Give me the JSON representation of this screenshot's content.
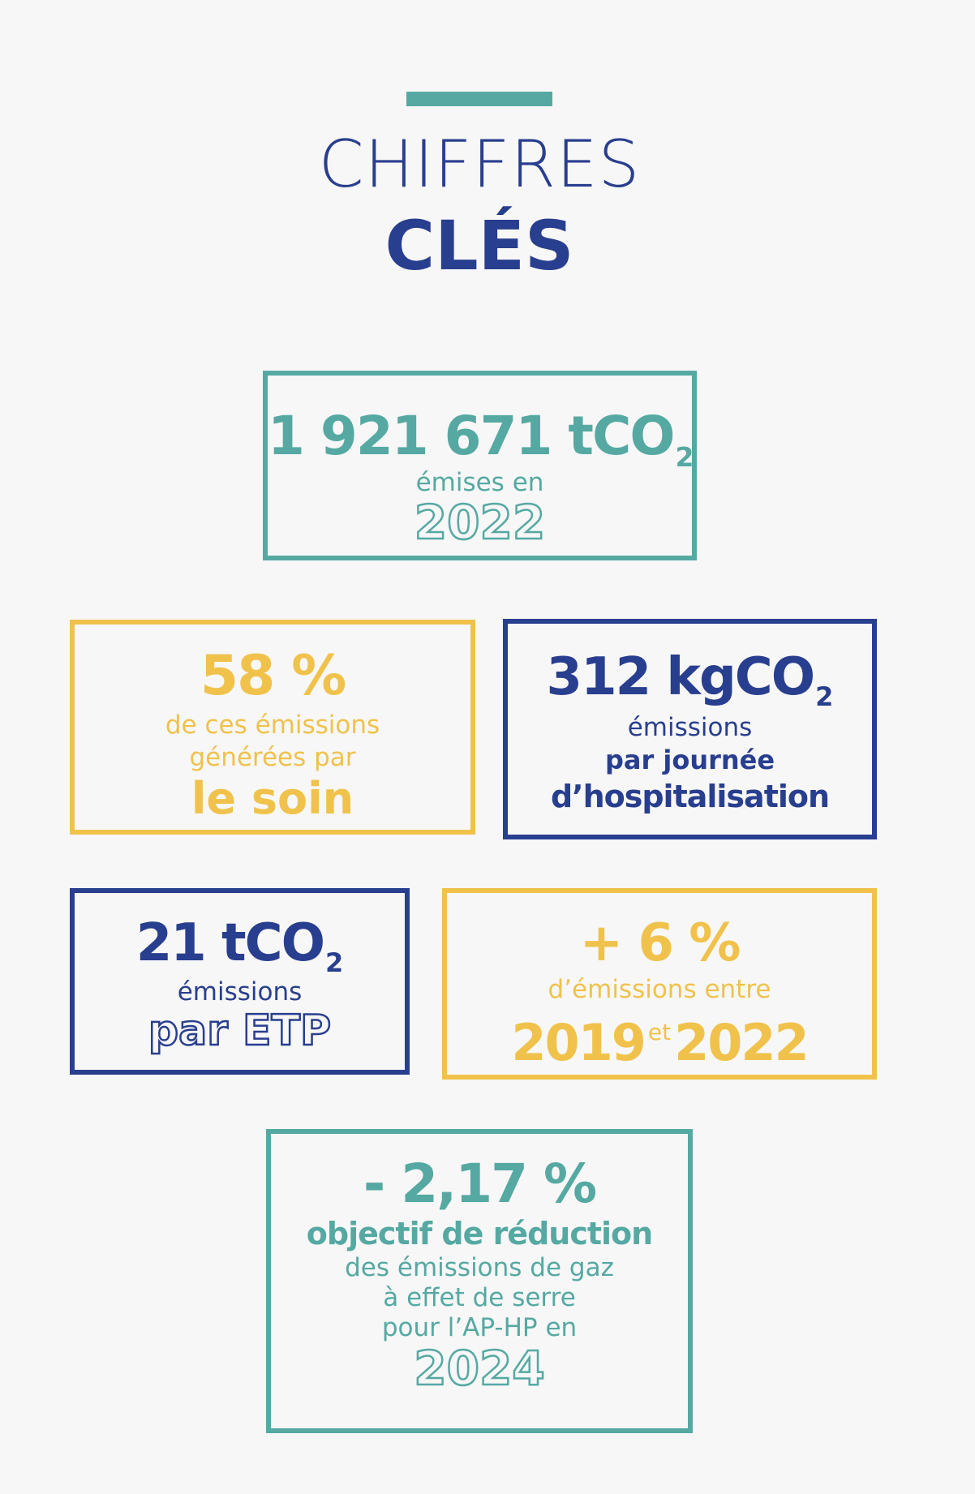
{
  "header": {
    "title_line1": "CHIFFRES",
    "title_line2": "CLÉS"
  },
  "box1": {
    "value": "1 921 671 tCO",
    "unit_sub": "2",
    "line1": "émises en",
    "year": "2022"
  },
  "box2": {
    "value": "58 %",
    "line1": "de ces émissions",
    "line2": "générées par",
    "emphasis": "le soin"
  },
  "box3": {
    "value": "312 kgCO",
    "unit_sub": "2",
    "line1": "émissions",
    "line2": "par journée",
    "line3": "d’hospitalisation"
  },
  "box4": {
    "value": "21 tCO",
    "unit_sub": "2",
    "line1": "émissions",
    "emphasis": "par ETP"
  },
  "box5": {
    "value": "+ 6 %",
    "line1": "d’émissions entre",
    "year_from": "2019",
    "connector": "et",
    "year_to": "2022"
  },
  "box6": {
    "value": "- 2,17 %",
    "line1": "objectif de réduction",
    "line2": "des émissions de gaz",
    "line3": "à effet de serre",
    "line4": "pour l’AP-HP en",
    "year": "2024"
  },
  "colors": {
    "teal": "#55a9a2",
    "yellow": "#f0c24c",
    "navy": "#283e8e",
    "background": "#f7f7f7"
  }
}
